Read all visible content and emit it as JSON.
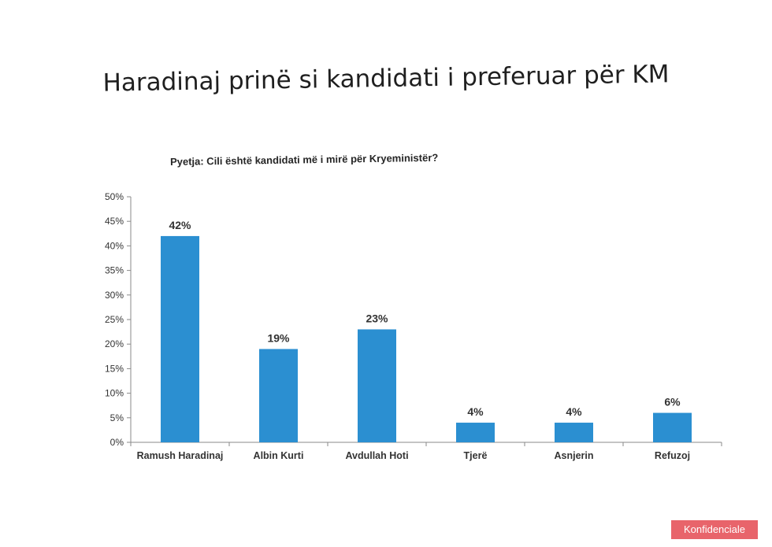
{
  "page": {
    "title": "Haradinaj prinë si kandidati i preferuar për KM",
    "subtitle": "Pyetja: Cili është kandidati më i mirë për Kryeministër?",
    "badge": "Konfidenciale"
  },
  "colors": {
    "bar": "#2b8fd1",
    "badge": "#e8646b"
  },
  "chart_data": {
    "type": "bar",
    "title": "Pyetja: Cili është kandidati më i mirë për Kryeministër?",
    "categories": [
      "Ramush Haradinaj",
      "Albin Kurti",
      "Avdullah Hoti",
      "Tjerë",
      "Asnjerin",
      "Refuzoj"
    ],
    "values": [
      42,
      19,
      23,
      4,
      4,
      6
    ],
    "value_labels": [
      "42%",
      "19%",
      "23%",
      "4%",
      "4%",
      "6%"
    ],
    "ylim": [
      0,
      50
    ],
    "yticks": [
      "0%",
      "5%",
      "10%",
      "15%",
      "20%",
      "25%",
      "30%",
      "35%",
      "40%",
      "45%",
      "50%"
    ],
    "xlabel": "",
    "ylabel": "",
    "grid": false,
    "legend": "none"
  }
}
